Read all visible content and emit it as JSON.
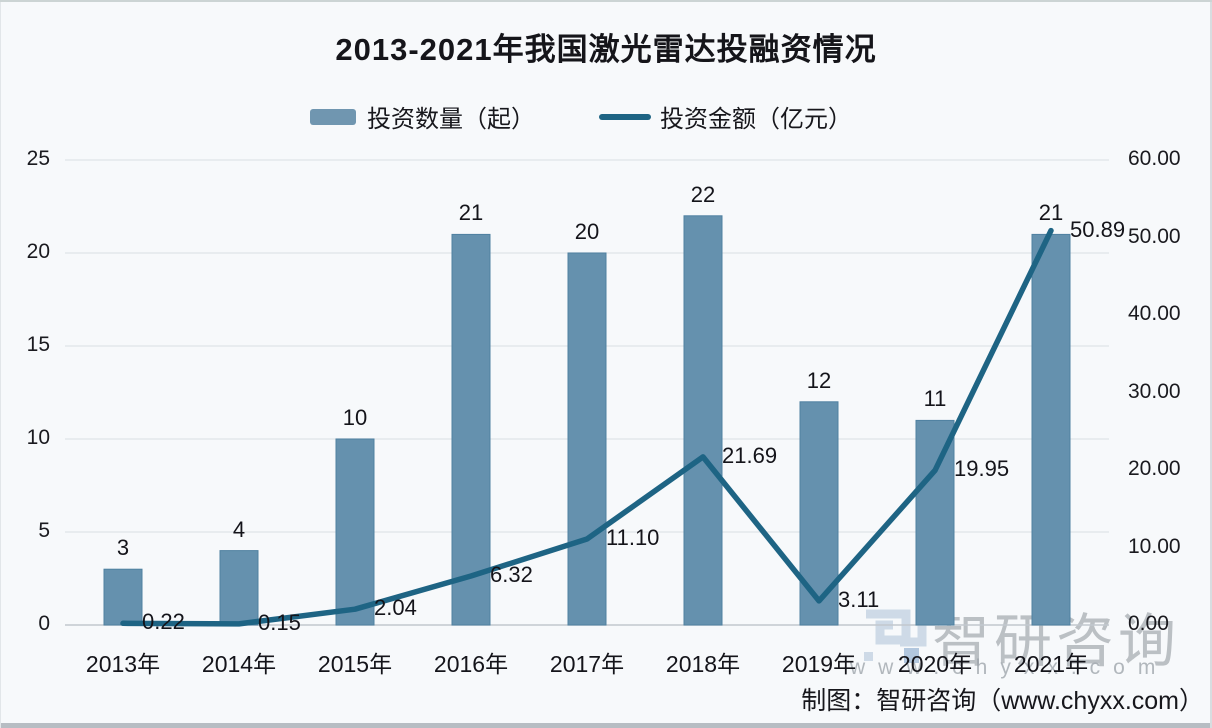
{
  "title": "2013-2021年我国激光雷达投融资情况",
  "legend": [
    {
      "label": "投资数量（起）",
      "type": "bar",
      "color": "#6591ae"
    },
    {
      "label": "投资金额（亿元）",
      "type": "line",
      "color": "#1e6484"
    }
  ],
  "chart_data": {
    "type": "bar+line combo",
    "title": "2013-2021年我国激光雷达投融资情况",
    "categories": [
      "2013年",
      "2014年",
      "2015年",
      "2016年",
      "2017年",
      "2018年",
      "2019年",
      "2020年",
      "2021年"
    ],
    "series": [
      {
        "name": "投资数量（起）",
        "type": "bar",
        "axis": "left",
        "color": "#6591ae",
        "values": [
          3,
          4,
          10,
          21,
          20,
          22,
          12,
          11,
          21
        ]
      },
      {
        "name": "投资金额（亿元）",
        "type": "line",
        "axis": "right",
        "color": "#1e6484",
        "values": [
          0.22,
          0.15,
          2.04,
          6.32,
          11.1,
          21.69,
          3.11,
          19.95,
          50.89
        ],
        "labels": [
          "0.22",
          "0.15",
          "2.04",
          "6.32",
          "11.10",
          "21.69",
          "3.11",
          "19.95",
          "50.89"
        ]
      }
    ],
    "left_axis": {
      "ticks": [
        "0",
        "5",
        "10",
        "15",
        "20",
        "25"
      ],
      "min": 0,
      "max": 25
    },
    "right_axis": {
      "ticks": [
        "0.00",
        "10.00",
        "20.00",
        "30.00",
        "40.00",
        "50.00",
        "60.00"
      ],
      "min": 0,
      "max": 60
    },
    "grid": true,
    "legend_position": "top"
  },
  "watermark": {
    "brand": "智研咨询",
    "url": "www.chyxx.com"
  },
  "footer": {
    "credit": "制图：智研咨询（www.chyxx.com）"
  },
  "colors": {
    "bar": "#6591ae",
    "bar_border": "#4f81a0",
    "line": "#1e6484",
    "background": "#f7f9fb",
    "grid": "#e3e7eb",
    "baseline": "#c2c8ce",
    "text": "#1a1a1f"
  }
}
